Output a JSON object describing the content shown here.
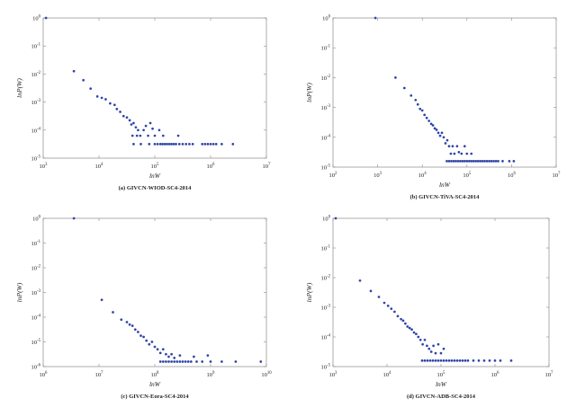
{
  "chart_data": [
    {
      "type": "scatter",
      "caption": "(a) GIVCN-WIOD-SC4-2014",
      "xlabel": "lnW",
      "ylabel": "lnP(W)",
      "log_x": true,
      "log_y": true,
      "xlim_exp": [
        3,
        7
      ],
      "ylim_exp": [
        -5,
        0
      ],
      "x_ticks": [
        [
          "10",
          "3"
        ],
        [
          "10",
          "4"
        ],
        [
          "10",
          "5"
        ],
        [
          "10",
          "6"
        ],
        [
          "10",
          "7"
        ]
      ],
      "y_ticks": [
        [
          "10",
          "-5"
        ],
        [
          "10",
          "-4"
        ],
        [
          "10",
          "-3"
        ],
        [
          "10",
          "-2"
        ],
        [
          "10",
          "-1"
        ],
        [
          "10",
          "0"
        ]
      ],
      "points_log10": [
        [
          3.05,
          0.0
        ],
        [
          3.55,
          -1.9
        ],
        [
          3.72,
          -2.22
        ],
        [
          3.85,
          -2.52
        ],
        [
          3.97,
          -2.8
        ],
        [
          4.05,
          -2.85
        ],
        [
          4.12,
          -2.9
        ],
        [
          4.2,
          -3.05
        ],
        [
          4.28,
          -3.1
        ],
        [
          4.32,
          -3.25
        ],
        [
          4.38,
          -3.35
        ],
        [
          4.44,
          -3.5
        ],
        [
          4.5,
          -3.55
        ],
        [
          4.55,
          -3.65
        ],
        [
          4.58,
          -3.8
        ],
        [
          4.62,
          -3.75
        ],
        [
          4.66,
          -3.9
        ],
        [
          4.7,
          -4.0
        ],
        [
          4.74,
          -4.2
        ],
        [
          4.8,
          -4.0
        ],
        [
          4.84,
          -3.85
        ],
        [
          4.88,
          -4.2
        ],
        [
          4.92,
          -3.75
        ],
        [
          4.96,
          -3.95
        ],
        [
          5.0,
          -4.2
        ],
        [
          5.08,
          -4.0
        ],
        [
          5.15,
          -4.2
        ],
        [
          4.6,
          -4.2
        ],
        [
          4.68,
          -4.2
        ],
        [
          4.75,
          -4.5
        ],
        [
          4.62,
          -4.5
        ],
        [
          4.9,
          -4.5
        ],
        [
          5.0,
          -4.5
        ],
        [
          5.05,
          -4.5
        ],
        [
          5.1,
          -4.5
        ],
        [
          5.14,
          -4.5
        ],
        [
          5.18,
          -4.5
        ],
        [
          5.22,
          -4.5
        ],
        [
          5.26,
          -4.5
        ],
        [
          5.3,
          -4.5
        ],
        [
          5.34,
          -4.5
        ],
        [
          5.38,
          -4.5
        ],
        [
          5.44,
          -4.5
        ],
        [
          5.5,
          -4.5
        ],
        [
          5.56,
          -4.5
        ],
        [
          5.62,
          -4.5
        ],
        [
          5.68,
          -4.5
        ],
        [
          5.85,
          -4.5
        ],
        [
          5.9,
          -4.5
        ],
        [
          5.95,
          -4.5
        ],
        [
          6.0,
          -4.5
        ],
        [
          6.05,
          -4.5
        ],
        [
          6.1,
          -4.5
        ],
        [
          6.2,
          -4.5
        ],
        [
          6.4,
          -4.5
        ],
        [
          5.42,
          -4.2
        ]
      ]
    },
    {
      "type": "scatter",
      "caption": "(b) GIVCN-TiVA-SC4-2014",
      "xlabel": "lnW",
      "ylabel": "lnP(W)",
      "log_x": true,
      "log_y": true,
      "xlim_exp": [
        2,
        7
      ],
      "ylim_exp": [
        -5,
        0
      ],
      "x_ticks": [
        [
          "10",
          "2"
        ],
        [
          "10",
          "3"
        ],
        [
          "10",
          "4"
        ],
        [
          "10",
          "5"
        ],
        [
          "10",
          "6"
        ],
        [
          "10",
          "7"
        ]
      ],
      "y_ticks": [
        [
          "10",
          "-5"
        ],
        [
          "10",
          "-4"
        ],
        [
          "10",
          "-3"
        ],
        [
          "10",
          "-2"
        ],
        [
          "10",
          "-1"
        ],
        [
          "10",
          "0"
        ]
      ],
      "points_log10": [
        [
          2.95,
          0.0
        ],
        [
          3.4,
          -2.0
        ],
        [
          3.6,
          -2.35
        ],
        [
          3.75,
          -2.6
        ],
        [
          3.85,
          -2.75
        ],
        [
          3.9,
          -2.9
        ],
        [
          3.95,
          -3.05
        ],
        [
          4.0,
          -3.1
        ],
        [
          4.05,
          -3.25
        ],
        [
          4.1,
          -3.35
        ],
        [
          4.15,
          -3.45
        ],
        [
          4.2,
          -3.55
        ],
        [
          4.24,
          -3.6
        ],
        [
          4.28,
          -3.7
        ],
        [
          4.32,
          -3.75
        ],
        [
          4.36,
          -3.85
        ],
        [
          4.4,
          -3.95
        ],
        [
          4.44,
          -3.85
        ],
        [
          4.48,
          -4.0
        ],
        [
          4.52,
          -4.2
        ],
        [
          4.56,
          -4.1
        ],
        [
          4.6,
          -4.3
        ],
        [
          4.64,
          -4.55
        ],
        [
          4.68,
          -4.3
        ],
        [
          4.72,
          -4.55
        ],
        [
          4.78,
          -4.3
        ],
        [
          4.82,
          -4.5
        ],
        [
          4.88,
          -4.55
        ],
        [
          4.95,
          -4.3
        ],
        [
          5.0,
          -4.55
        ],
        [
          5.1,
          -4.55
        ],
        [
          4.55,
          -4.8
        ],
        [
          4.6,
          -4.8
        ],
        [
          4.65,
          -4.8
        ],
        [
          4.7,
          -4.8
        ],
        [
          4.75,
          -4.8
        ],
        [
          4.8,
          -4.8
        ],
        [
          4.85,
          -4.8
        ],
        [
          4.9,
          -4.8
        ],
        [
          4.95,
          -4.8
        ],
        [
          5.0,
          -4.8
        ],
        [
          5.05,
          -4.8
        ],
        [
          5.1,
          -4.8
        ],
        [
          5.15,
          -4.8
        ],
        [
          5.2,
          -4.8
        ],
        [
          5.25,
          -4.8
        ],
        [
          5.3,
          -4.8
        ],
        [
          5.35,
          -4.8
        ],
        [
          5.4,
          -4.8
        ],
        [
          5.45,
          -4.8
        ],
        [
          5.5,
          -4.8
        ],
        [
          5.55,
          -4.8
        ],
        [
          5.6,
          -4.8
        ],
        [
          5.65,
          -4.8
        ],
        [
          5.7,
          -4.8
        ],
        [
          5.8,
          -4.8
        ],
        [
          5.95,
          -4.8
        ],
        [
          6.05,
          -4.8
        ]
      ]
    },
    {
      "type": "scatter",
      "caption": "(c) GIVCN-Eora-SC4-2014",
      "xlabel": "lnW",
      "ylabel": "lnP(W)",
      "log_x": true,
      "log_y": true,
      "xlim_exp": [
        6,
        10
      ],
      "ylim_exp": [
        -6,
        0
      ],
      "x_ticks": [
        [
          "10",
          "6"
        ],
        [
          "10",
          "7"
        ],
        [
          "10",
          "8"
        ],
        [
          "10",
          "9"
        ],
        [
          "10",
          "10"
        ]
      ],
      "y_ticks": [
        [
          "10",
          "-6"
        ],
        [
          "10",
          "-5"
        ],
        [
          "10",
          "-4"
        ],
        [
          "10",
          "-3"
        ],
        [
          "10",
          "-2"
        ],
        [
          "10",
          "-1"
        ],
        [
          "10",
          "0"
        ]
      ],
      "points_log10": [
        [
          6.55,
          0.0
        ],
        [
          7.05,
          -3.3
        ],
        [
          7.25,
          -3.8
        ],
        [
          7.4,
          -4.1
        ],
        [
          7.5,
          -4.2
        ],
        [
          7.55,
          -4.3
        ],
        [
          7.6,
          -4.35
        ],
        [
          7.65,
          -4.5
        ],
        [
          7.7,
          -4.6
        ],
        [
          7.75,
          -4.75
        ],
        [
          7.8,
          -4.8
        ],
        [
          7.85,
          -4.95
        ],
        [
          7.9,
          -5.1
        ],
        [
          7.95,
          -5.0
        ],
        [
          8.0,
          -5.2
        ],
        [
          8.05,
          -5.3
        ],
        [
          8.1,
          -5.45
        ],
        [
          8.15,
          -5.3
        ],
        [
          8.2,
          -5.5
        ],
        [
          8.25,
          -5.6
        ],
        [
          8.3,
          -5.5
        ],
        [
          8.35,
          -5.65
        ],
        [
          8.45,
          -5.55
        ],
        [
          8.7,
          -5.6
        ],
        [
          8.95,
          -5.55
        ],
        [
          8.1,
          -5.8
        ],
        [
          8.15,
          -5.8
        ],
        [
          8.2,
          -5.8
        ],
        [
          8.25,
          -5.8
        ],
        [
          8.3,
          -5.8
        ],
        [
          8.35,
          -5.8
        ],
        [
          8.4,
          -5.8
        ],
        [
          8.45,
          -5.8
        ],
        [
          8.5,
          -5.8
        ],
        [
          8.55,
          -5.8
        ],
        [
          8.6,
          -5.8
        ],
        [
          8.65,
          -5.8
        ],
        [
          8.75,
          -5.8
        ],
        [
          8.85,
          -5.8
        ],
        [
          9.0,
          -5.8
        ],
        [
          9.2,
          -5.8
        ],
        [
          9.45,
          -5.8
        ],
        [
          9.9,
          -5.8
        ]
      ]
    },
    {
      "type": "scatter",
      "caption": "(d) GIVCN-ADB-SC4-2014",
      "xlabel": "lnW",
      "ylabel": "lnP(W)",
      "log_x": true,
      "log_y": true,
      "xlim_exp": [
        3,
        7
      ],
      "ylim_exp": [
        -5,
        0
      ],
      "x_ticks": [
        [
          "10",
          "3"
        ],
        [
          "10",
          "4"
        ],
        [
          "10",
          "5"
        ],
        [
          "10",
          "6"
        ],
        [
          "10",
          "7"
        ]
      ],
      "y_ticks": [
        [
          "10",
          "-5"
        ],
        [
          "10",
          "-4"
        ],
        [
          "10",
          "-3"
        ],
        [
          "10",
          "-2"
        ],
        [
          "10",
          "-1"
        ],
        [
          "10",
          "0"
        ]
      ],
      "points_log10": [
        [
          3.05,
          0.0
        ],
        [
          3.5,
          -2.1
        ],
        [
          3.7,
          -2.45
        ],
        [
          3.85,
          -2.65
        ],
        [
          3.95,
          -2.85
        ],
        [
          4.02,
          -2.95
        ],
        [
          4.08,
          -3.05
        ],
        [
          4.14,
          -3.15
        ],
        [
          4.2,
          -3.3
        ],
        [
          4.26,
          -3.4
        ],
        [
          4.3,
          -3.45
        ],
        [
          4.34,
          -3.55
        ],
        [
          4.38,
          -3.65
        ],
        [
          4.42,
          -3.7
        ],
        [
          4.46,
          -3.75
        ],
        [
          4.5,
          -3.85
        ],
        [
          4.54,
          -3.9
        ],
        [
          4.58,
          -4.0
        ],
        [
          4.62,
          -4.1
        ],
        [
          4.66,
          -4.25
        ],
        [
          4.7,
          -4.1
        ],
        [
          4.74,
          -4.3
        ],
        [
          4.78,
          -4.4
        ],
        [
          4.82,
          -4.5
        ],
        [
          4.86,
          -4.3
        ],
        [
          4.9,
          -4.55
        ],
        [
          4.95,
          -4.25
        ],
        [
          5.0,
          -4.55
        ],
        [
          5.05,
          -4.4
        ],
        [
          4.65,
          -4.8
        ],
        [
          4.7,
          -4.8
        ],
        [
          4.75,
          -4.8
        ],
        [
          4.8,
          -4.8
        ],
        [
          4.85,
          -4.8
        ],
        [
          4.9,
          -4.8
        ],
        [
          4.95,
          -4.8
        ],
        [
          5.0,
          -4.8
        ],
        [
          5.05,
          -4.8
        ],
        [
          5.1,
          -4.8
        ],
        [
          5.15,
          -4.8
        ],
        [
          5.2,
          -4.8
        ],
        [
          5.25,
          -4.8
        ],
        [
          5.3,
          -4.8
        ],
        [
          5.35,
          -4.8
        ],
        [
          5.4,
          -4.8
        ],
        [
          5.45,
          -4.8
        ],
        [
          5.5,
          -4.8
        ],
        [
          5.6,
          -4.8
        ],
        [
          5.7,
          -4.8
        ],
        [
          5.8,
          -4.8
        ],
        [
          5.9,
          -4.8
        ],
        [
          6.0,
          -4.8
        ],
        [
          6.1,
          -4.8
        ],
        [
          6.3,
          -4.8
        ]
      ]
    }
  ]
}
